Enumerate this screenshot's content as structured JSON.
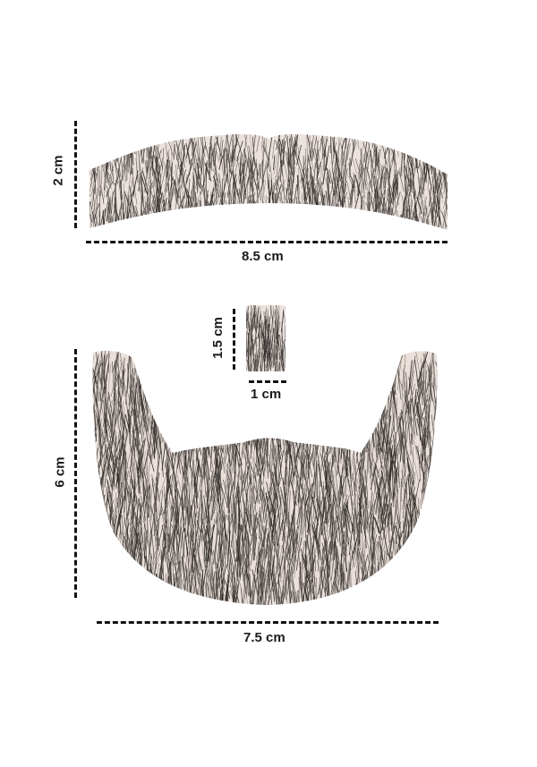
{
  "colors": {
    "background": "#ffffff",
    "hair_dark": "#2b2725",
    "hair_mid": "#5a5450",
    "lace_base": "#e9dcd6",
    "dimension_line": "#111111"
  },
  "mustache": {
    "width_label": "8.5 cm",
    "height_label": "2 cm"
  },
  "sample_patch": {
    "width_label": "1 cm",
    "height_label": "1.5 cm"
  },
  "beard": {
    "width_label": "7.5 cm",
    "height_label": "6 cm"
  }
}
